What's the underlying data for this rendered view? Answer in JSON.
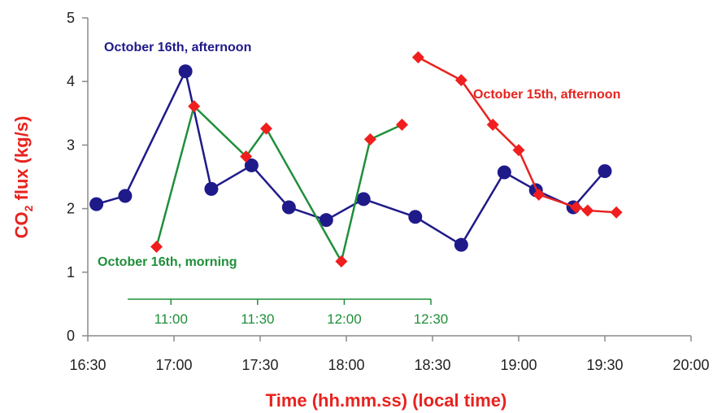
{
  "chart_data": {
    "type": "line",
    "xlabel": "Time (hh.mm.ss) (local time)",
    "ylabel_main": "CO",
    "ylabel_sub": "2",
    "ylabel_rest": " flux (kg/s)",
    "ylim": [
      0,
      5
    ],
    "y_ticks": [
      "0",
      "1",
      "2",
      "3",
      "4",
      "5"
    ],
    "x_ticks": [
      "16:30",
      "17:00",
      "17:30",
      "18:00",
      "18:30",
      "19:00",
      "19:30",
      "20:00"
    ],
    "x_range_minutes": [
      990,
      1200
    ],
    "secondary_x_ticks": [
      "11:00",
      "11:30",
      "12:00",
      "12:30"
    ],
    "secondary_x_range_minutes": [
      645,
      750
    ],
    "grid": false,
    "series": [
      {
        "name": "October 16th, afternoon",
        "axis": "primary",
        "color": "#1f1a8a",
        "marker": "circle",
        "x": [
          "16:33",
          "16:43",
          "17:04",
          "17:13",
          "17:27",
          "17:40",
          "17:53",
          "18:06",
          "18:24",
          "18:40",
          "18:55",
          "19:06",
          "19:19",
          "19:30"
        ],
        "y": [
          2.07,
          2.2,
          4.16,
          2.31,
          2.68,
          2.02,
          1.82,
          2.15,
          1.87,
          1.43,
          2.57,
          2.29,
          2.02,
          2.59
        ]
      },
      {
        "name": "October 16th, morning",
        "axis": "secondary",
        "color": "#1f8f3a",
        "marker": "diamond",
        "x": [
          "10:55",
          "11:06",
          "11:19",
          "11:25",
          "12:00",
          "12:06",
          "12:13"
        ],
        "y": [
          1.4,
          3.61,
          2.82,
          3.26,
          1.17,
          3.09,
          3.32
        ],
        "x_actual": [
          "10:55",
          "11:08",
          "11:26",
          "11:33",
          "11:59",
          "12:09",
          "12:20"
        ]
      },
      {
        "name": "October 15th, afternoon",
        "axis": "primary",
        "color": "#e8231f",
        "marker": "diamond",
        "x": [
          "18:25",
          "18:40",
          "18:51",
          "19:00",
          "19:07",
          "19:20",
          "19:24",
          "19:34"
        ],
        "y": [
          4.38,
          4.02,
          3.32,
          2.92,
          2.22,
          2.02,
          1.97,
          1.94
        ]
      }
    ],
    "annotations": [
      "October 16th, afternoon",
      "October 16th, morning",
      "October 15th, afternoon"
    ]
  },
  "colors": {
    "axis_title": "#e8231f",
    "axis_line": "#8a8a8a",
    "secondary_axis": "#1f8f3a"
  }
}
